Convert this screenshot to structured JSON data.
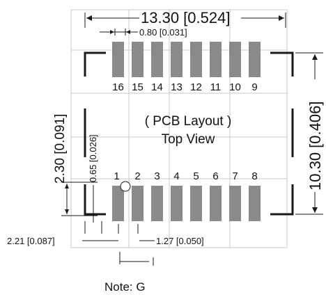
{
  "title": "( PCB Layout )",
  "subtitle": "Top View",
  "dimensions": {
    "width": "13.30 [0.524]",
    "pitch_small": "0.80 [0.031]",
    "height": "10.30 [0.406]",
    "row_gap": "2.30 [0.091]",
    "pad_width": "0.65 [0.026]",
    "offset": "2.21 [0.087]",
    "pitch": "1.27 [0.050]"
  },
  "top_pins": [
    "16",
    "15",
    "14",
    "13",
    "12",
    "11",
    "10",
    "9"
  ],
  "bottom_pins": [
    "1",
    "2",
    "3",
    "4",
    "5",
    "6",
    "7",
    "8"
  ],
  "note": "Note: G",
  "colors": {
    "pad": "#8a8a8a",
    "line": "#1a1a1a",
    "grid": "#c9c9c9"
  }
}
